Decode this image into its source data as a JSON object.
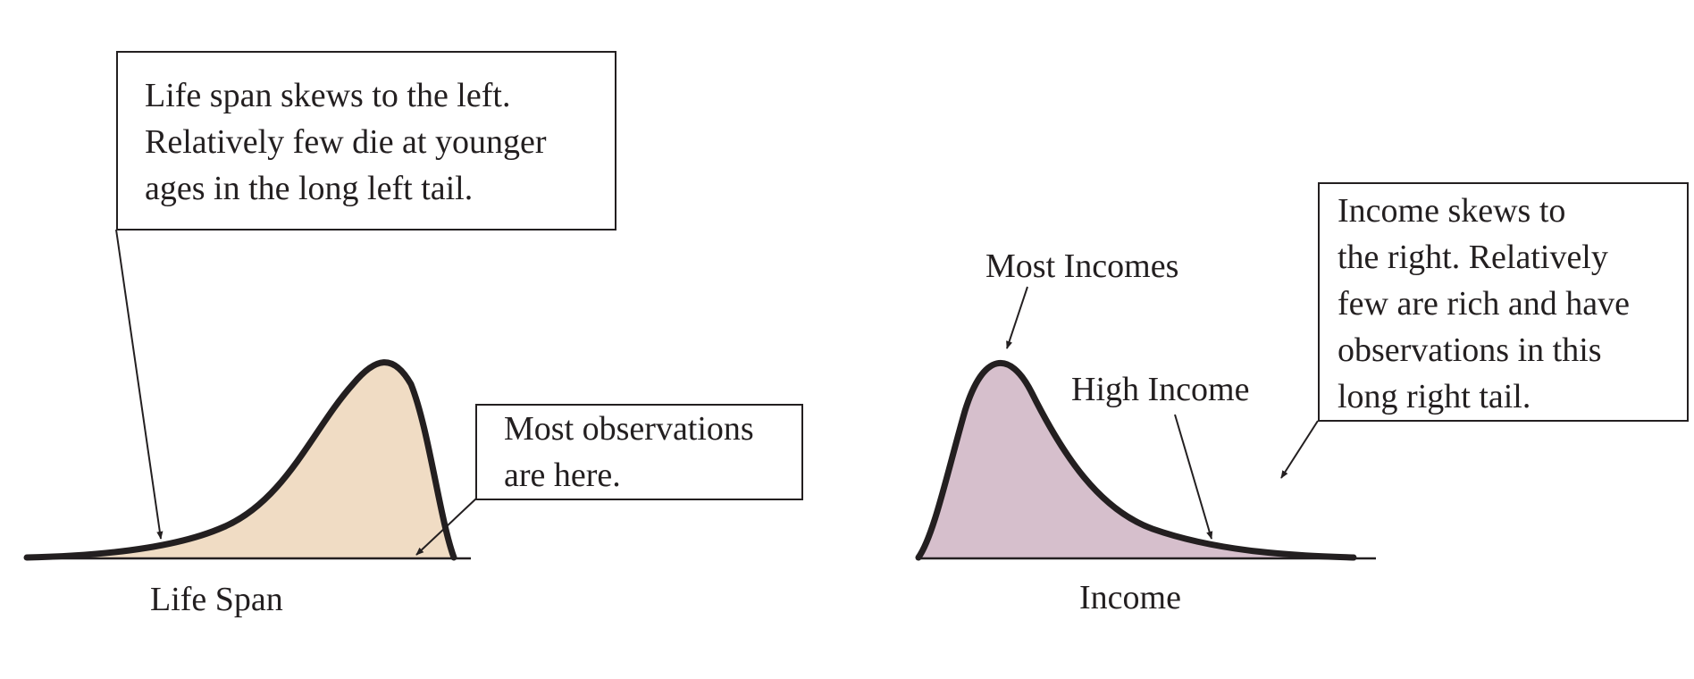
{
  "callouts": {
    "left_skew": [
      "Life span skews to the left.",
      "Relatively few die at younger",
      "ages in the long left tail."
    ],
    "most_observations": [
      "Most observations",
      "are here."
    ],
    "right_skew": [
      "Income skews to",
      "the right. Relatively",
      "few are rich and have",
      "observations in this",
      "long right tail."
    ]
  },
  "labels": {
    "most_incomes": "Most Incomes",
    "high_income": "High Income",
    "life_span": "Life Span",
    "income": "Income"
  },
  "colors": {
    "left_fill": "#f0dcc4",
    "right_fill": "#d6bfcc",
    "stroke": "#231f20"
  }
}
